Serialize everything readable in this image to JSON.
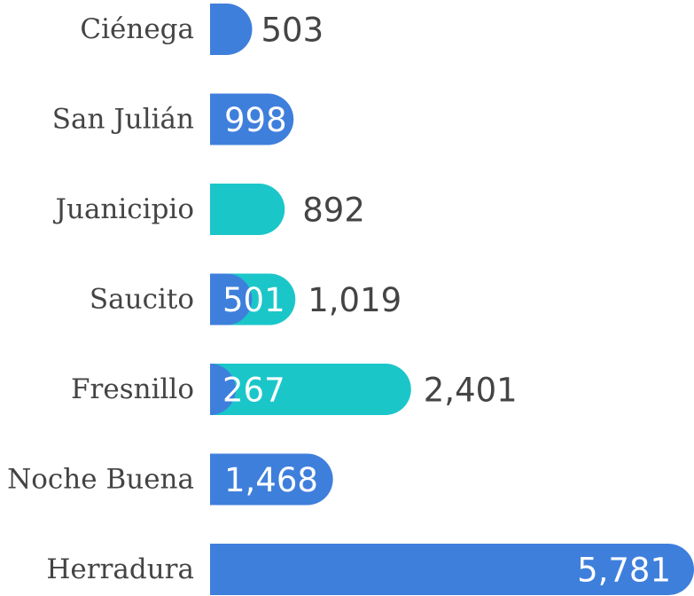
{
  "chart_data": {
    "type": "bar",
    "orientation": "horizontal",
    "categories": [
      "Ciénega",
      "San Julián",
      "Juanicipio",
      "Saucito",
      "Fresnillo",
      "Noche Buena",
      "Herradura"
    ],
    "series": [
      {
        "color": "#3f7fdc",
        "values": [
          503,
          998,
          null,
          501,
          267,
          1468,
          5781
        ],
        "value_labels": [
          "503",
          "998",
          null,
          "501",
          "267",
          "1,468",
          "5,781"
        ]
      },
      {
        "color": "#1bc6c9",
        "values": [
          null,
          null,
          892,
          1019,
          2401,
          null,
          null
        ],
        "value_labels": [
          null,
          null,
          "892",
          "1,019",
          "2,401",
          null,
          null
        ]
      }
    ],
    "xlim": [
      0,
      5781
    ],
    "grid": false,
    "legend": "none"
  }
}
